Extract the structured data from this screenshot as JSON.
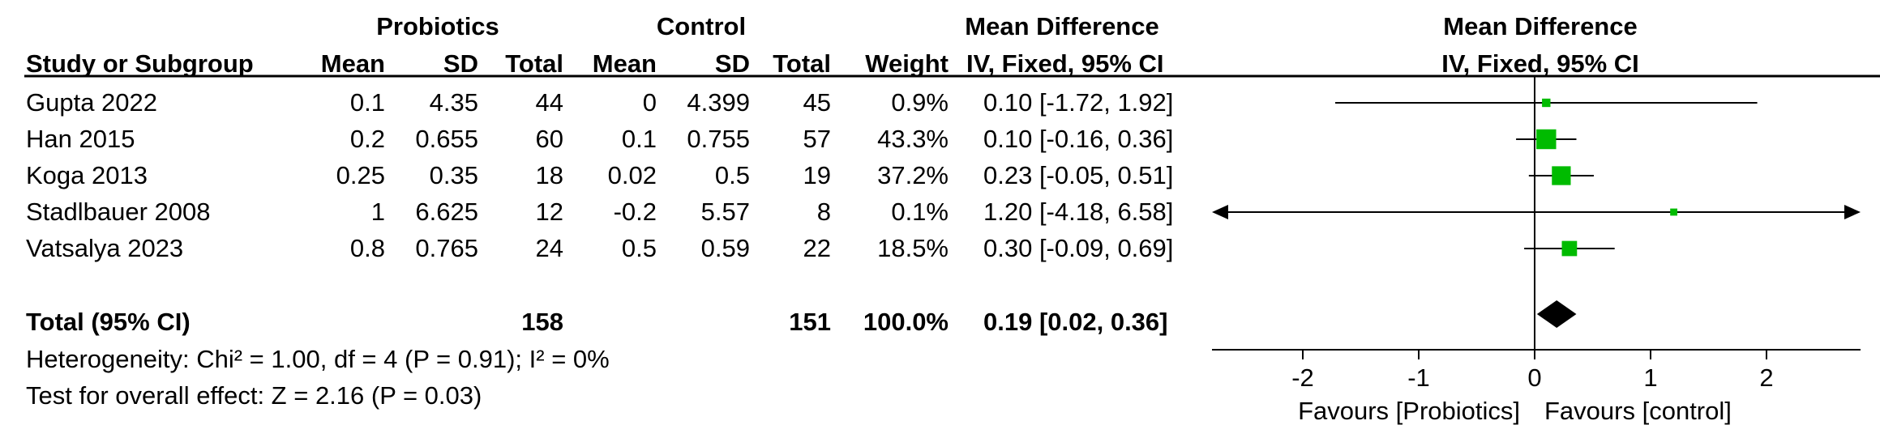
{
  "headers": {
    "probiotics": "Probiotics",
    "control": "Control",
    "mean_difference": "Mean Difference",
    "plot_mean_difference": "Mean Difference",
    "study": "Study or Subgroup",
    "mean1": "Mean",
    "sd1": "SD",
    "total1": "Total",
    "mean2": "Mean",
    "sd2": "SD",
    "total2": "Total",
    "weight": "Weight",
    "method": "IV, Fixed, 95% CI",
    "plot_method": "IV, Fixed, 95% CI"
  },
  "studies": [
    {
      "name": "Gupta 2022",
      "mean1": "0.1",
      "sd1": "4.35",
      "total1": "44",
      "mean2": "0",
      "sd2": "4.399",
      "total2": "45",
      "weight": "0.9%",
      "ci": "0.10 [-1.72, 1.92]"
    },
    {
      "name": "Han 2015",
      "mean1": "0.2",
      "sd1": "0.655",
      "total1": "60",
      "mean2": "0.1",
      "sd2": "0.755",
      "total2": "57",
      "weight": "43.3%",
      "ci": "0.10 [-0.16, 0.36]"
    },
    {
      "name": "Koga 2013",
      "mean1": "0.25",
      "sd1": "0.35",
      "total1": "18",
      "mean2": "0.02",
      "sd2": "0.5",
      "total2": "19",
      "weight": "37.2%",
      "ci": "0.23 [-0.05, 0.51]"
    },
    {
      "name": "Stadlbauer 2008",
      "mean1": "1",
      "sd1": "6.625",
      "total1": "12",
      "mean2": "-0.2",
      "sd2": "5.57",
      "total2": "8",
      "weight": "0.1%",
      "ci": "1.20 [-4.18, 6.58]"
    },
    {
      "name": "Vatsalya 2023",
      "mean1": "0.8",
      "sd1": "0.765",
      "total1": "24",
      "mean2": "0.5",
      "sd2": "0.59",
      "total2": "22",
      "weight": "18.5%",
      "ci": "0.30 [-0.09, 0.69]"
    }
  ],
  "total": {
    "label": "Total (95% CI)",
    "total1": "158",
    "total2": "151",
    "weight": "100.0%",
    "ci": "0.19 [0.02, 0.36]"
  },
  "heterogeneity": "Heterogeneity: Chi² = 1.00, df = 4 (P = 0.91); I² = 0%",
  "overall_effect": "Test for overall effect: Z = 2.16 (P = 0.03)",
  "axis": {
    "favours_left": "Favours [Probiotics]",
    "favours_right": "Favours [control]"
  },
  "colors": {
    "study_marker": "#00bb00",
    "summary_diamond": "#000000",
    "lines": "#000000"
  },
  "chart_data": {
    "type": "forest",
    "xlim": [
      -2.8,
      2.8
    ],
    "ticks": [
      -2,
      -1,
      0,
      1,
      2
    ],
    "tick_labels": [
      "-2",
      "-1",
      "0",
      "1",
      "2"
    ],
    "studies": [
      {
        "name": "Gupta 2022",
        "md": 0.1,
        "lo": -1.72,
        "hi": 1.92,
        "weight": 0.9
      },
      {
        "name": "Han 2015",
        "md": 0.1,
        "lo": -0.16,
        "hi": 0.36,
        "weight": 43.3
      },
      {
        "name": "Koga 2013",
        "md": 0.23,
        "lo": -0.05,
        "hi": 0.51,
        "weight": 37.2
      },
      {
        "name": "Stadlbauer 2008",
        "md": 1.2,
        "lo": -4.18,
        "hi": 6.58,
        "weight": 0.1
      },
      {
        "name": "Vatsalya 2023",
        "md": 0.3,
        "lo": -0.09,
        "hi": 0.69,
        "weight": 18.5
      }
    ],
    "summary": {
      "md": 0.19,
      "lo": 0.02,
      "hi": 0.36
    }
  }
}
